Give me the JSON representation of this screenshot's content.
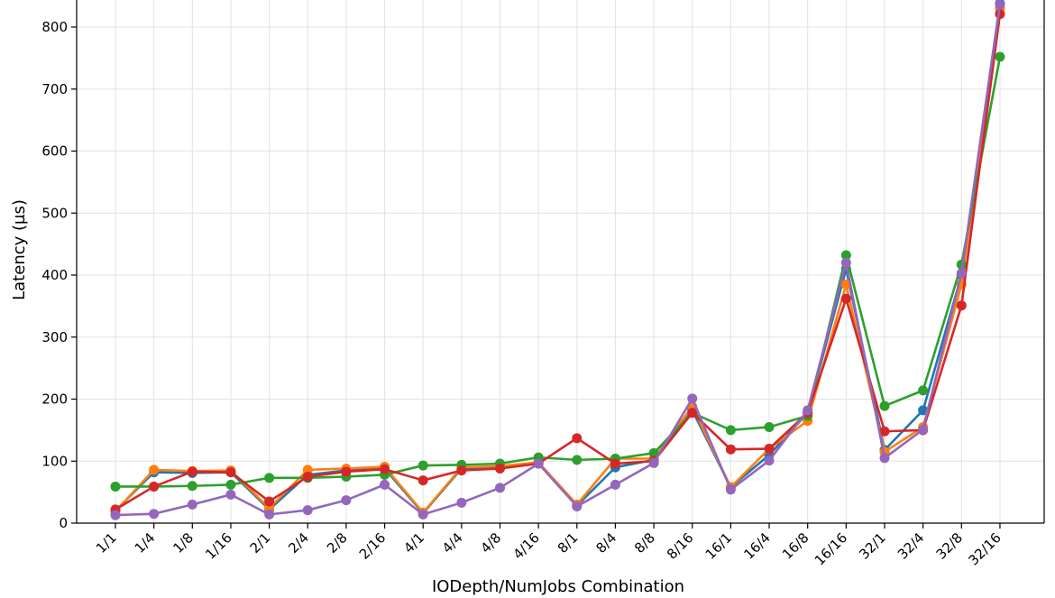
{
  "chart_data": {
    "type": "line",
    "xlabel": "IODepth/NumJobs Combination",
    "ylabel": "Latency (µs)",
    "ylim": [
      0,
      840
    ],
    "yticks": [
      0,
      100,
      200,
      300,
      400,
      500,
      600,
      700,
      800
    ],
    "grid": true,
    "categories": [
      "1/1",
      "1/4",
      "1/8",
      "1/16",
      "2/1",
      "2/4",
      "2/8",
      "2/16",
      "4/1",
      "4/4",
      "4/8",
      "4/16",
      "8/1",
      "8/4",
      "8/8",
      "8/16",
      "16/1",
      "16/4",
      "16/8",
      "16/16",
      "32/1",
      "32/4",
      "32/8",
      "32/16"
    ],
    "series": [
      {
        "color": "#1f77b4",
        "values": [
          20,
          82,
          81,
          82,
          22,
          78,
          85,
          88,
          16,
          88,
          90,
          98,
          28,
          90,
          102,
          182,
          58,
          110,
          178,
          410,
          118,
          182,
          400,
          838
        ]
      },
      {
        "color": "#ff7f0e",
        "values": [
          19,
          86,
          84,
          85,
          24,
          86,
          88,
          91,
          17,
          90,
          92,
          98,
          30,
          104,
          104,
          188,
          58,
          120,
          165,
          385,
          115,
          155,
          385,
          830
        ]
      },
      {
        "color": "#2ca02c",
        "values": [
          59,
          59,
          60,
          62,
          73,
          73,
          75,
          78,
          93,
          94,
          96,
          106,
          102,
          104,
          113,
          178,
          150,
          155,
          173,
          432,
          189,
          214,
          417,
          752
        ]
      },
      {
        "color": "#d62728",
        "values": [
          22,
          59,
          83,
          82,
          35,
          75,
          83,
          87,
          69,
          85,
          88,
          96,
          137,
          96,
          100,
          178,
          119,
          120,
          178,
          362,
          148,
          150,
          351,
          821
        ]
      },
      {
        "color": "#9467bd",
        "values": [
          13,
          15,
          30,
          46,
          14,
          21,
          37,
          62,
          14,
          33,
          57,
          96,
          27,
          62,
          97,
          201,
          54,
          101,
          182,
          420,
          105,
          151,
          403,
          836
        ]
      }
    ]
  }
}
